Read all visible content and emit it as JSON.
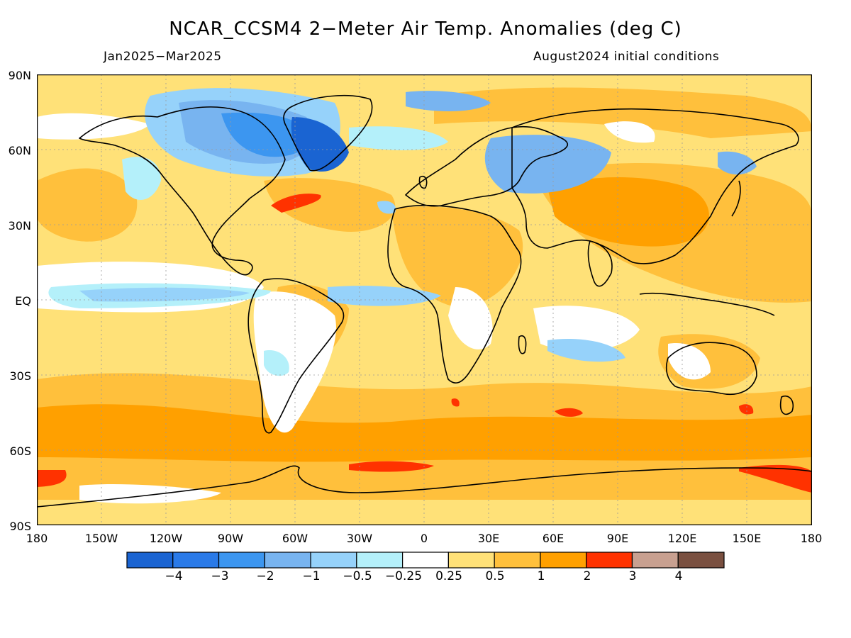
{
  "header": {
    "title": "NCAR_CCSM4 2−Meter Air Temp. Anomalies (deg C)",
    "period": "Jan2025−Mar2025",
    "init": "August2024 initial conditions"
  },
  "axes": {
    "lat_ticks": [
      {
        "label": "90N",
        "value": 90
      },
      {
        "label": "60N",
        "value": 60
      },
      {
        "label": "30N",
        "value": 30
      },
      {
        "label": "EQ",
        "value": 0
      },
      {
        "label": "30S",
        "value": -30
      },
      {
        "label": "60S",
        "value": -60
      },
      {
        "label": "90S",
        "value": -90
      }
    ],
    "lon_ticks": [
      {
        "label": "180",
        "value": -180
      },
      {
        "label": "150W",
        "value": -150
      },
      {
        "label": "120W",
        "value": -120
      },
      {
        "label": "90W",
        "value": -90
      },
      {
        "label": "60W",
        "value": -60
      },
      {
        "label": "30W",
        "value": -30
      },
      {
        "label": "0",
        "value": 0
      },
      {
        "label": "30E",
        "value": 30
      },
      {
        "label": "60E",
        "value": 60
      },
      {
        "label": "90E",
        "value": 90
      },
      {
        "label": "120E",
        "value": 120
      },
      {
        "label": "150E",
        "value": 150
      },
      {
        "label": "180",
        "value": 180
      }
    ]
  },
  "colorbar": {
    "colors": [
      "#1a64d2",
      "#2a7ae8",
      "#3c96f0",
      "#78b4f0",
      "#96d2fa",
      "#b4f0fa",
      "#ffffff",
      "#ffe178",
      "#ffc03c",
      "#ffa000",
      "#ff3200",
      "#c8a090",
      "#7a5040"
    ],
    "labels": [
      "−4",
      "−3",
      "−2",
      "−1",
      "−0.5",
      "−0.25",
      "0.25",
      "0.5",
      "1",
      "2",
      "3",
      "4"
    ]
  },
  "map_colors": {
    "ocean_base": "#ffe178",
    "warm1": "#ffc03c",
    "warm2": "#ffa000",
    "hot": "#ff3200",
    "neutral": "#ffffff",
    "cool1": "#b4f0fa",
    "cool2": "#96d2fa",
    "cool3": "#78b4f0",
    "cool4": "#3c96f0",
    "cool5": "#1a64d2",
    "coast": "#000000",
    "grid": "#9a9a9a"
  }
}
